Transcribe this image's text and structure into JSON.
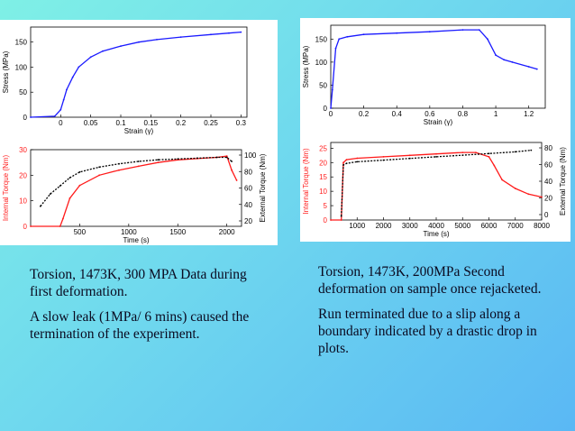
{
  "chart_data": [
    {
      "type": "line",
      "xlabel": "Strain (γ)",
      "ylabel": "Stress (MPa)",
      "xlim": [
        -0.05,
        0.31
      ],
      "ylim": [
        0,
        180
      ],
      "xticks": [
        "0",
        "0.05",
        "0.1",
        "0.15",
        "0.2",
        "0.25",
        "0.3"
      ],
      "xtick_values": [
        0,
        0.05,
        0.1,
        0.15,
        0.2,
        0.25,
        0.3
      ],
      "yticks": [
        "0",
        "50",
        "100",
        "150"
      ],
      "ytick_values": [
        0,
        50,
        100,
        150
      ],
      "series": [
        {
          "color": "#1a1aff",
          "x": [
            -0.05,
            -0.01,
            0.0,
            0.005,
            0.01,
            0.02,
            0.03,
            0.05,
            0.07,
            0.1,
            0.13,
            0.16,
            0.2,
            0.25,
            0.28,
            0.3
          ],
          "y": [
            0,
            2,
            15,
            35,
            55,
            80,
            100,
            120,
            132,
            142,
            150,
            155,
            160,
            165,
            168,
            170
          ]
        }
      ]
    },
    {
      "type": "line",
      "xlabel": "Time (s)",
      "ylabel": "Internal Torque (Nm)",
      "ylabel_right": "External Torque (Nm)",
      "xlim": [
        0,
        2150
      ],
      "ylim": [
        0,
        30
      ],
      "xticks": [
        "500",
        "1000",
        "1500",
        "2000"
      ],
      "xtick_values": [
        500,
        1000,
        1500,
        2000
      ],
      "yticks": [
        "0",
        "10",
        "20",
        "30"
      ],
      "ytick_values": [
        0,
        10,
        20,
        30
      ],
      "yticks_right": [
        "20",
        "40",
        "60",
        "80",
        "100"
      ],
      "series": [
        {
          "color": "#ff1a1a",
          "axis": "left",
          "x": [
            0,
            300,
            330,
            400,
            500,
            700,
            900,
            1100,
            1300,
            1500,
            1700,
            1900,
            2000,
            2050,
            2100
          ],
          "y": [
            0,
            0,
            3,
            11,
            16,
            20,
            22,
            23.5,
            25,
            26,
            26.5,
            27,
            27.5,
            22,
            18
          ]
        },
        {
          "color": "#000000",
          "axis": "right",
          "x": [
            100,
            200,
            300,
            400,
            500,
            700,
            900,
            1100,
            1300,
            1500,
            1700,
            1900,
            2000,
            2050
          ],
          "y": [
            40,
            55,
            65,
            75,
            82,
            88,
            92,
            95,
            97,
            98,
            99,
            100,
            100,
            95
          ]
        }
      ]
    },
    {
      "type": "line",
      "xlabel": "Strain (γ)",
      "ylabel": "Stress (MPa)",
      "xlim": [
        0,
        1.3
      ],
      "ylim": [
        0,
        180
      ],
      "xticks": [
        "0",
        "0.2",
        "0.4",
        "0.6",
        "0.8",
        "1",
        "1.2"
      ],
      "xtick_values": [
        0,
        0.2,
        0.4,
        0.6,
        0.8,
        1,
        1.2
      ],
      "yticks": [
        "0",
        "50",
        "100",
        "150"
      ],
      "ytick_values": [
        0,
        50,
        100,
        150
      ],
      "series": [
        {
          "color": "#1a1aff",
          "x": [
            0,
            0.01,
            0.03,
            0.05,
            0.1,
            0.2,
            0.4,
            0.6,
            0.8,
            0.9,
            0.95,
            1.0,
            1.05,
            1.1,
            1.2,
            1.25
          ],
          "y": [
            0,
            40,
            130,
            150,
            155,
            160,
            163,
            166,
            170,
            170,
            150,
            115,
            105,
            100,
            90,
            85
          ]
        }
      ]
    },
    {
      "type": "line",
      "xlabel": "Time (s)",
      "ylabel": "Internal Torque (Nm)",
      "ylabel_right": "External Torque (Nm)",
      "xlim": [
        0,
        8000
      ],
      "ylim": [
        0,
        27
      ],
      "xticks": [
        "1000",
        "2000",
        "3000",
        "4000",
        "5000",
        "6000",
        "7000",
        "8000"
      ],
      "xtick_values": [
        1000,
        2000,
        3000,
        4000,
        5000,
        6000,
        7000,
        8000
      ],
      "yticks": [
        "0",
        "5",
        "10",
        "15",
        "20",
        "25"
      ],
      "ytick_values": [
        0,
        5,
        10,
        15,
        20,
        25
      ],
      "yticks_right": [
        "0",
        "20",
        "40",
        "60",
        "80"
      ],
      "series": [
        {
          "color": "#ff1a1a",
          "axis": "left",
          "x": [
            0,
            400,
            480,
            600,
            1000,
            2000,
            3000,
            4000,
            5000,
            5500,
            6000,
            6200,
            6500,
            7000,
            7500,
            8000
          ],
          "y": [
            0,
            0,
            20,
            21,
            21.5,
            22,
            22.5,
            23,
            23.5,
            23.5,
            22,
            19,
            14,
            11,
            9,
            8
          ]
        },
        {
          "color": "#000000",
          "axis": "right",
          "x": [
            400,
            480,
            600,
            1000,
            2000,
            3000,
            4000,
            5000,
            6000,
            7000,
            7600
          ],
          "y": [
            0,
            62,
            64,
            66,
            68,
            70,
            72,
            74,
            76,
            78,
            80
          ]
        }
      ]
    }
  ],
  "captions": {
    "left": {
      "p1": "Torsion, 1473K, 300 MPA Data during first deformation.",
      "p2": "A slow leak (1MPa/ 6 mins) caused the termination of the experiment."
    },
    "right": {
      "p1": "Torsion, 1473K, 200MPa Second deformation on sample once rejacketed.",
      "p2": "Run terminated due to a slip along a boundary indicated by a drastic drop in plots."
    }
  }
}
